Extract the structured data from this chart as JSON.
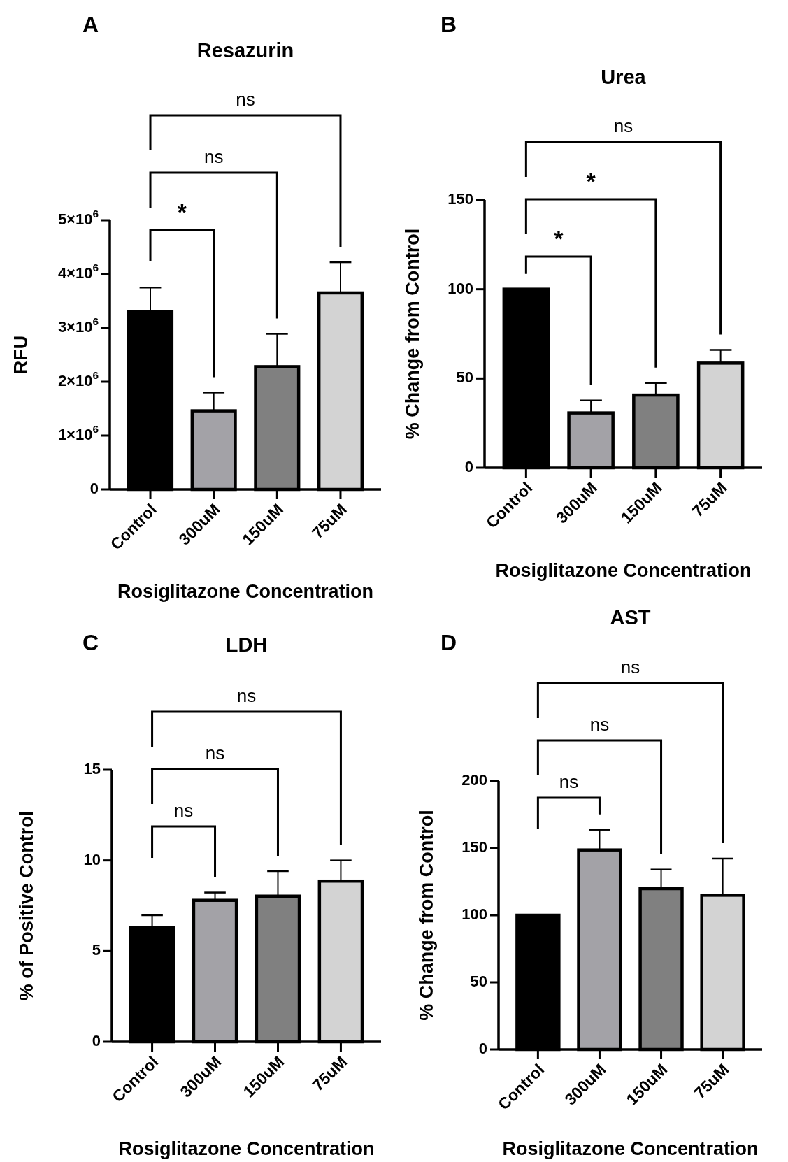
{
  "chart_data": [
    {
      "type": "bar",
      "title": "Resazurin",
      "xlabel": "Rosiglitazone Concentration",
      "ylabel": "RFU",
      "annotations": [
        "A",
        "*",
        "ns",
        "ns"
      ],
      "categories": [
        "Control",
        "300uM",
        "150uM",
        "75uM"
      ],
      "values": [
        3300000,
        1460000,
        2280000,
        3650000
      ],
      "errors": [
        450000,
        340000,
        610000,
        570000
      ],
      "colors": [
        "#000000",
        "#a3a2a7",
        "#808080",
        "#d3d3d3"
      ],
      "ylim": [
        0,
        5000000
      ],
      "yticks": [
        0,
        {
          "value": 1000000,
          "label": "1×10$^{6}$"
        },
        {
          "value": 2000000,
          "label": "2×10$^{6}$"
        },
        {
          "value": 3000000,
          "label": "3×10$^{6}$"
        },
        {
          "value": 4000000,
          "label": "4×10$^{6}$"
        },
        {
          "value": 5000000,
          "label": "5×10$^{6}$"
        }
      ]
    },
    {
      "type": "bar",
      "title": "Urea",
      "xlabel": "Rosiglitazone Concentration",
      "ylabel": "% Change from Control",
      "annotations": [
        "B",
        "*",
        "*",
        "ns"
      ],
      "categories": [
        "Control",
        "300uM",
        "150uM",
        "75uM"
      ],
      "values": [
        100,
        30.7,
        40.7,
        58.6
      ],
      "errors": [
        null,
        7,
        6.8,
        7.4
      ],
      "colors": [
        "#000000",
        "#a3a2a7",
        "#808080",
        "#d3d3d3"
      ],
      "ylim": [
        0,
        150
      ],
      "yticks": [
        0,
        50,
        100,
        150
      ]
    },
    {
      "type": "bar",
      "title": "LDH",
      "xlabel": "Rosiglitazone Concentration",
      "ylabel": "% of Positive Control",
      "annotations": [
        "C",
        "ns",
        "ns",
        "ns"
      ],
      "categories": [
        "Control",
        "300uM",
        "150uM",
        "75uM"
      ],
      "values": [
        6.3,
        7.8,
        8.03,
        8.86
      ],
      "errors": [
        0.68,
        0.43,
        1.38,
        1.14
      ],
      "colors": [
        "#000000",
        "#a3a2a7",
        "#808080",
        "#d3d3d3"
      ],
      "ylim": [
        0,
        15
      ],
      "yticks": [
        0,
        5,
        10,
        15
      ]
    },
    {
      "type": "bar",
      "title": "AST",
      "xlabel": "Rosiglitazone Concentration",
      "ylabel": "% Change from Control",
      "annotations": [
        "D",
        "ns",
        "ns",
        "ns"
      ],
      "categories": [
        "Control",
        "300uM",
        "150uM",
        "75uM"
      ],
      "values": [
        100,
        148.6,
        119.8,
        114.9
      ],
      "errors": [
        null,
        15.1,
        14.2,
        27.3
      ],
      "colors": [
        "#000000",
        "#a3a2a7",
        "#808080",
        "#d3d3d3"
      ],
      "ylim": [
        0,
        200
      ],
      "yticks": [
        0,
        50,
        100,
        150,
        200
      ]
    }
  ]
}
